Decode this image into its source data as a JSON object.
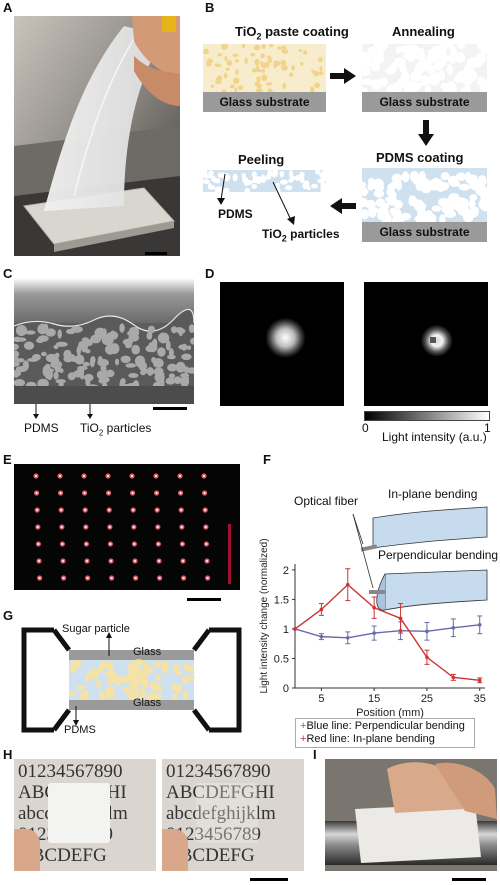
{
  "panels": {
    "a": "A",
    "b": "B",
    "c": "C",
    "d": "D",
    "e": "E",
    "f": "F",
    "g": "G",
    "h": "H",
    "i": "I"
  },
  "b": {
    "step1": "TiO",
    "step1_sub": "2",
    "step1_rest": " paste coating",
    "step2": "Annealing",
    "step3": "PDMS coating",
    "step4": "Peeling",
    "substrate": "Glass substrate",
    "pdms": "PDMS",
    "tio2": "TiO",
    "tio2_sub": "2",
    "tio2_rest": " particles"
  },
  "c": {
    "pdms": "PDMS",
    "tio2": "TiO",
    "tio2_sub": "2",
    "tio2_rest": " particles"
  },
  "d": {
    "colorbar_min": "0",
    "colorbar_max": "1",
    "colorbar_label": "Light intensity (a.u.)"
  },
  "f": {
    "optical_fiber": "Optical fiber",
    "in_plane": "In-plane bending",
    "perpendicular": "Perpendicular bending",
    "legend_blue": "Blue line: Perpendicular bending",
    "legend_red": "Red line: In-plane bending"
  },
  "g": {
    "sugar": "Sugar particle",
    "glass_top": "Glass",
    "glass_bottom": "Glass",
    "pdms": "PDMS"
  },
  "h": {
    "left_lines": [
      "01234567890",
      "ABCDEFGHI",
      "abcdefghijklm",
      "0123456789",
      "ABCDEFG"
    ],
    "right_lines": [
      "01234567890",
      "ABCDEFGHI",
      "abcdefghijklm",
      "0123456789",
      "ABCDEFG"
    ]
  },
  "chart_data": {
    "type": "line",
    "xlabel": "Position (mm)",
    "ylabel": "Light intensity change (normalized)",
    "xlim": [
      0,
      36
    ],
    "ylim": [
      0,
      2.1
    ],
    "xticks": [
      5,
      15,
      25,
      35
    ],
    "yticks": [
      0,
      0.5,
      1,
      1.5,
      2
    ],
    "colors": {
      "blue": "#6a6aaa",
      "red": "#cc3333"
    },
    "series": [
      {
        "name": "Blue line: Perpendicular bending",
        "color": "#6a6aaa",
        "x": [
          0,
          5,
          10,
          15,
          20,
          25,
          30,
          35
        ],
        "y": [
          1.0,
          0.87,
          0.85,
          0.93,
          0.97,
          0.96,
          1.02,
          1.07
        ],
        "err": [
          0,
          0.05,
          0.1,
          0.12,
          0.15,
          0.15,
          0.15,
          0.15
        ]
      },
      {
        "name": "Red line: In-plane bending",
        "color": "#cc3333",
        "x": [
          0,
          5,
          10,
          15,
          20,
          25,
          30,
          35
        ],
        "y": [
          1.0,
          1.33,
          1.75,
          1.36,
          1.18,
          0.52,
          0.18,
          0.13
        ],
        "err": [
          0,
          0.1,
          0.27,
          0.18,
          0.25,
          0.12,
          0.05,
          0.04
        ]
      }
    ]
  }
}
